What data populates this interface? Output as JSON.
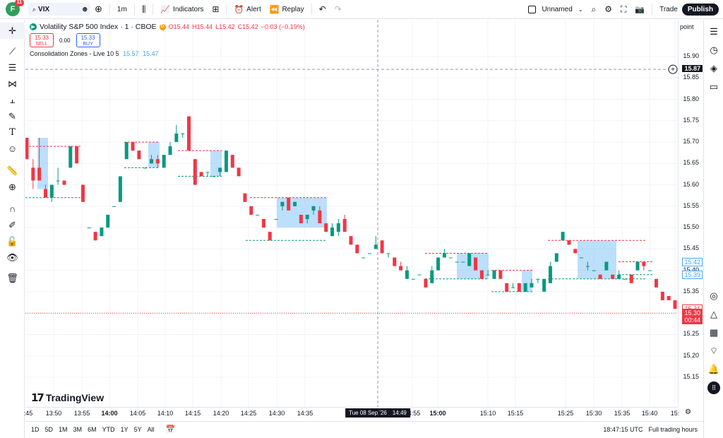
{
  "topbar": {
    "avatar_letter": "F",
    "avatar_badge": "11",
    "symbol": "VIX",
    "interval": "1m",
    "indicators_label": "Indicators",
    "alert_label": "Alert",
    "replay_label": "Replay",
    "layout_name": "Unnamed",
    "trade_label": "Trade",
    "publish_label": "Publish"
  },
  "legend": {
    "title": "Volatility S&P 500 Index · 1 · CBOE",
    "exchange_badge": "D",
    "o": "O15.44",
    "h": "H15.44",
    "l": "L15.42",
    "c": "C15.42",
    "change": "−0.03 (−0.19%)",
    "sell_price": "15.33",
    "sell_label": "SELL",
    "spread": "0.00",
    "buy_price": "15.33",
    "buy_label": "BUY",
    "indicator_name": "Consolidation Zones - Live 10 5",
    "indicator_val1": "15.57",
    "indicator_val2": "15.47"
  },
  "price_axis": {
    "point_label": "point",
    "crosshair_price": "15.87",
    "label_1542": "15.42",
    "label_1539": "15.39",
    "label_1531": "15.31",
    "current_price": "15.30",
    "countdown": "00:44",
    "ticks": [
      "15.90",
      "15.85",
      "15.80",
      "15.75",
      "15.70",
      "15.65",
      "15.60",
      "15.55",
      "15.50",
      "15.45",
      "15.40",
      "15.35",
      "15.25",
      "15.20",
      "15.15"
    ]
  },
  "time_axis": {
    "ticks": [
      ":45",
      "13:50",
      "13:55",
      "14:00",
      "14:05",
      "14:10",
      "14:15",
      "14:20",
      "14:25",
      "14:30",
      "14:35",
      "14:55",
      "15:00",
      "15:10",
      "15:15",
      "15:25",
      "15:30",
      "15:35",
      "15:40",
      "15:"
    ],
    "crosshair_date": "Tue 08 Sep '26",
    "crosshair_time": "14:49"
  },
  "bottombar": {
    "ranges": [
      "1D",
      "5D",
      "1M",
      "3M",
      "6M",
      "YTD",
      "1Y",
      "5Y",
      "All"
    ],
    "clock": "18:47:15 UTC",
    "session": "Full trading hours"
  },
  "watermark": "TradingView",
  "colors": {
    "up": "#089981",
    "down": "#f23645",
    "zone": "#90caf9"
  }
}
